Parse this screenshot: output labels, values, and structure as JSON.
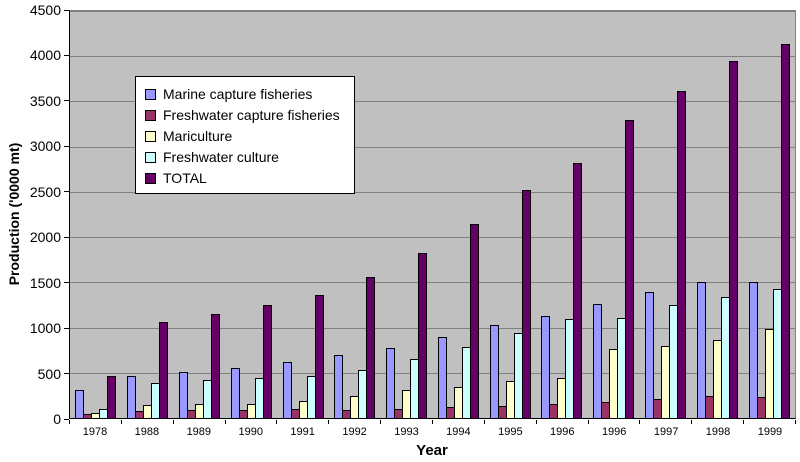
{
  "chart_data": {
    "type": "bar",
    "title": "",
    "xlabel": "Year",
    "ylabel": "Production ('0000 mt)",
    "ylim": [
      0,
      4500
    ],
    "y_tick_step": 500,
    "y_tick_labels": [
      "0",
      "500",
      "1000",
      "1500",
      "2000",
      "2500",
      "3000",
      "3500",
      "4000",
      "4500"
    ],
    "grid": true,
    "legend_position": "upper-left-inside",
    "plot_bg_color": "#C0C0C0",
    "gridline_color": "#808080",
    "bar_border_color": "#000000",
    "categories": [
      "1978",
      "1988",
      "1989",
      "1990",
      "1991",
      "1992",
      "1993",
      "1994",
      "1995",
      "1996",
      "1996",
      "1997",
      "1998",
      "1999"
    ],
    "series": [
      {
        "name": "Marine capture fisheries",
        "color": "#9999FF",
        "values": [
          310,
          470,
          510,
          555,
          615,
          695,
          775,
          900,
          1030,
          1130,
          1260,
          1390,
          1500,
          1500
        ]
      },
      {
        "name": "Freshwater capture fisheries",
        "color": "#993366",
        "values": [
          45,
          75,
          85,
          90,
          100,
          90,
          95,
          120,
          135,
          160,
          175,
          210,
          240,
          235
        ]
      },
      {
        "name": "Mariculture",
        "color": "#FFFFCC",
        "values": [
          60,
          145,
          150,
          155,
          190,
          240,
          305,
          340,
          410,
          440,
          765,
          800,
          865,
          985
        ]
      },
      {
        "name": "Freshwater culture",
        "color": "#CCFFFF",
        "values": [
          100,
          390,
          415,
          440,
          465,
          530,
          650,
          790,
          945,
          1095,
          1110,
          1245,
          1335,
          1430
        ]
      },
      {
        "name": "TOTAL",
        "color": "#660066",
        "values": [
          465,
          1065,
          1155,
          1245,
          1360,
          1560,
          1820,
          2150,
          2520,
          2820,
          3300,
          3620,
          3950,
          4130
        ]
      }
    ]
  }
}
